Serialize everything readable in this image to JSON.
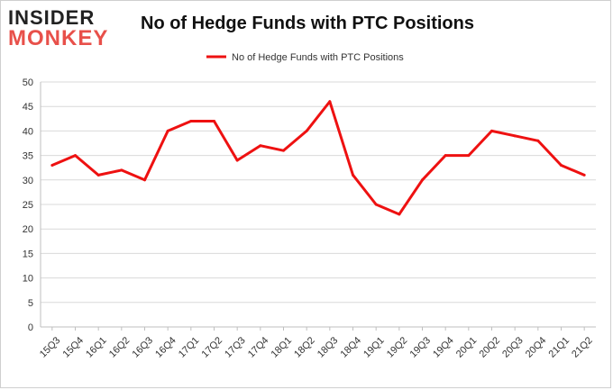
{
  "logo": {
    "top": "INSIDER",
    "bottom": "MONKEY"
  },
  "chart_data": {
    "type": "line",
    "title": "No of Hedge Funds with PTC Positions",
    "categories": [
      "15Q3",
      "15Q4",
      "16Q1",
      "16Q2",
      "16Q3",
      "16Q4",
      "17Q1",
      "17Q2",
      "17Q3",
      "17Q4",
      "18Q1",
      "18Q2",
      "18Q3",
      "18Q4",
      "19Q1",
      "19Q2",
      "19Q3",
      "19Q4",
      "20Q1",
      "20Q2",
      "20Q3",
      "20Q4",
      "21Q1",
      "21Q2"
    ],
    "series": [
      {
        "name": "No of Hedge Funds with PTC Positions",
        "values": [
          33,
          35,
          31,
          32,
          30,
          40,
          42,
          42,
          34,
          37,
          36,
          40,
          46,
          31,
          25,
          23,
          30,
          35,
          35,
          40,
          39,
          38,
          33,
          31
        ]
      }
    ],
    "ylim": [
      0,
      50
    ],
    "yticks": [
      0,
      5,
      10,
      15,
      20,
      25,
      30,
      35,
      40,
      45,
      50
    ],
    "grid": true,
    "legend_position": "top",
    "line_color": "#ee1111"
  }
}
